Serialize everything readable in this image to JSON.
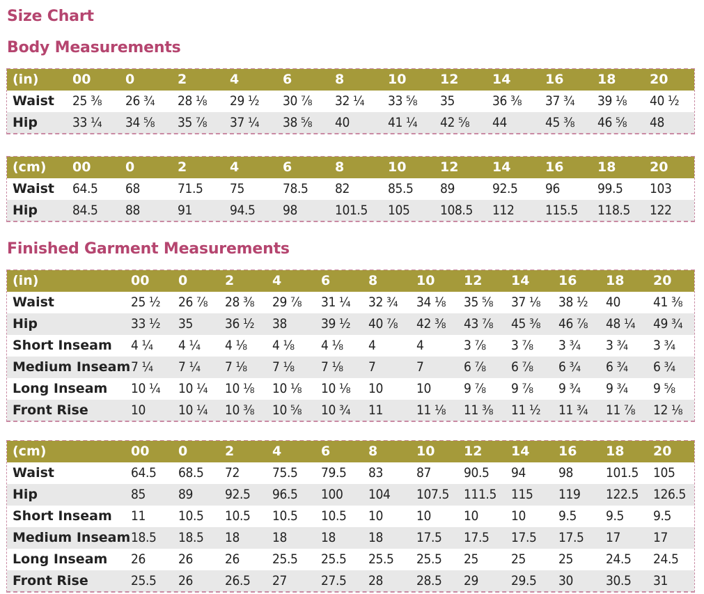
{
  "title": "Size Chart",
  "body_heading": "Body Measurements",
  "garment_heading": "Finished Garment Measurements",
  "body_in": {
    "unit": "(in)",
    "sizes": [
      "00",
      "0",
      "2",
      "4",
      "6",
      "8",
      "10",
      "12",
      "14",
      "16",
      "18",
      "20"
    ],
    "rows": [
      {
        "label": "Waist",
        "values": [
          "25 ⅜",
          "26 ¾",
          "28 ⅛",
          "29 ½",
          "30 ⅞",
          "32 ¼",
          "33 ⅝",
          "35",
          "36 ⅜",
          "37 ¾",
          "39 ⅛",
          "40 ½"
        ]
      },
      {
        "label": "Hip",
        "values": [
          "33 ¼",
          "34 ⅝",
          "35 ⅞",
          "37 ¼",
          "38 ⅝",
          "40",
          "41 ¼",
          "42 ⅝",
          "44",
          "45 ⅜",
          "46 ⅝",
          "48"
        ]
      }
    ]
  },
  "body_cm": {
    "unit": "(cm)",
    "sizes": [
      "00",
      "0",
      "2",
      "4",
      "6",
      "8",
      "10",
      "12",
      "14",
      "16",
      "18",
      "20"
    ],
    "rows": [
      {
        "label": "Waist",
        "values": [
          "64.5",
          "68",
          "71.5",
          "75",
          "78.5",
          "82",
          "85.5",
          "89",
          "92.5",
          "96",
          "99.5",
          "103"
        ]
      },
      {
        "label": "Hip",
        "values": [
          "84.5",
          "88",
          "91",
          "94.5",
          "98",
          "101.5",
          "105",
          "108.5",
          "112",
          "115.5",
          "118.5",
          "122"
        ]
      }
    ]
  },
  "garment_in": {
    "unit": "(in)",
    "sizes": [
      "00",
      "0",
      "2",
      "4",
      "6",
      "8",
      "10",
      "12",
      "14",
      "16",
      "18",
      "20"
    ],
    "rows": [
      {
        "label": "Waist",
        "values": [
          "25 ½",
          "26 ⅞",
          "28 ⅜",
          "29 ⅞",
          "31 ¼",
          "32 ¾",
          "34 ⅛",
          "35 ⅝",
          "37 ⅛",
          "38 ½",
          "40",
          "41 ⅜"
        ]
      },
      {
        "label": "Hip",
        "values": [
          "33 ½",
          "35",
          "36 ½",
          "38",
          "39 ½",
          "40 ⅞",
          "42 ⅜",
          "43 ⅞",
          "45 ⅜",
          "46 ⅞",
          "48 ¼",
          "49 ¾"
        ]
      },
      {
        "label": "Short Inseam",
        "values": [
          "4 ¼",
          "4 ¼",
          "4 ⅛",
          "4 ⅛",
          "4 ⅛",
          "4",
          "4",
          "3 ⅞",
          "3 ⅞",
          "3 ¾",
          "3 ¾",
          "3 ¾"
        ]
      },
      {
        "label": "Medium Inseam",
        "values": [
          "7 ¼",
          "7 ¼",
          "7 ⅛",
          "7 ⅛",
          "7 ⅛",
          "7",
          "7",
          "6 ⅞",
          "6 ⅞",
          "6 ¾",
          "6 ¾",
          "6 ¾"
        ]
      },
      {
        "label": "Long Inseam",
        "values": [
          "10 ¼",
          "10 ¼",
          "10 ⅛",
          "10 ⅛",
          "10 ⅛",
          "10",
          "10",
          "9 ⅞",
          "9 ⅞",
          "9 ¾",
          "9 ¾",
          "9 ⅝"
        ]
      },
      {
        "label": "Front Rise",
        "values": [
          "10",
          "10 ¼",
          "10 ⅜",
          "10 ⅝",
          "10 ¾",
          "11",
          "11 ⅛",
          "11 ⅜",
          "11 ½",
          "11 ¾",
          "11 ⅞",
          "12 ⅛"
        ]
      }
    ]
  },
  "garment_cm": {
    "unit": "(cm)",
    "sizes": [
      "00",
      "0",
      "2",
      "4",
      "6",
      "8",
      "10",
      "12",
      "14",
      "16",
      "18",
      "20"
    ],
    "rows": [
      {
        "label": "Waist",
        "values": [
          "64.5",
          "68.5",
          "72",
          "75.5",
          "79.5",
          "83",
          "87",
          "90.5",
          "94",
          "98",
          "101.5",
          "105"
        ]
      },
      {
        "label": "Hip",
        "values": [
          "85",
          "89",
          "92.5",
          "96.5",
          "100",
          "104",
          "107.5",
          "111.5",
          "115",
          "119",
          "122.5",
          "126.5"
        ]
      },
      {
        "label": "Short Inseam",
        "values": [
          "11",
          "10.5",
          "10.5",
          "10.5",
          "10.5",
          "10",
          "10",
          "10",
          "10",
          "9.5",
          "9.5",
          "9.5"
        ]
      },
      {
        "label": "Medium Inseam",
        "values": [
          "18.5",
          "18.5",
          "18",
          "18",
          "18",
          "18",
          "17.5",
          "17.5",
          "17.5",
          "17.5",
          "17",
          "17"
        ]
      },
      {
        "label": "Long Inseam",
        "values": [
          "26",
          "26",
          "26",
          "25.5",
          "25.5",
          "25.5",
          "25.5",
          "25",
          "25",
          "25",
          "24.5",
          "24.5"
        ]
      },
      {
        "label": "Front Rise",
        "values": [
          "25.5",
          "26",
          "26.5",
          "27",
          "27.5",
          "28",
          "28.5",
          "29",
          "29.5",
          "30",
          "30.5",
          "31"
        ]
      }
    ]
  }
}
